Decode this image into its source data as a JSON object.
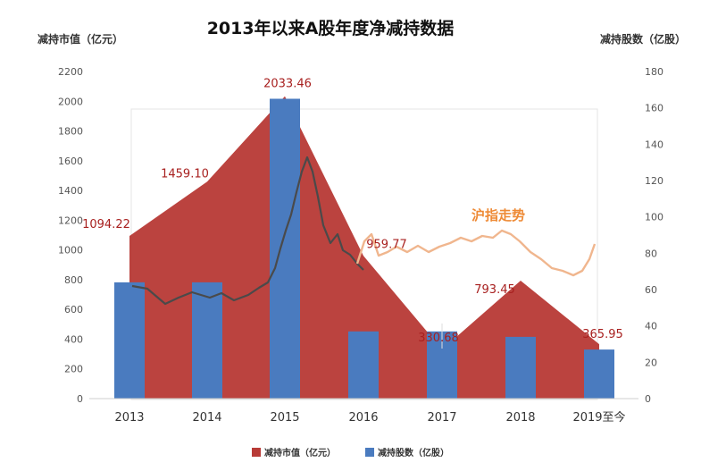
{
  "chart_data": {
    "type": "bar",
    "title": "2013年以来A股年度净减持数据",
    "categories": [
      "2013",
      "2014",
      "2015",
      "2016",
      "2017",
      "2018",
      "2019至今"
    ],
    "y_left_label": "减持市值（亿元）",
    "y_right_label": "减持股数（亿股）",
    "y_left_range": [
      0,
      2200
    ],
    "y_left_ticks": [
      0,
      200,
      400,
      600,
      800,
      1000,
      1200,
      1400,
      1600,
      1800,
      2000,
      2200
    ],
    "y_right_range": [
      0,
      180
    ],
    "y_right_ticks": [
      0,
      20,
      40,
      60,
      80,
      100,
      120,
      140,
      160,
      180
    ],
    "series": [
      {
        "name": "减持市值（亿元）",
        "kind": "area",
        "axis": "left",
        "color": "#b83b37",
        "values": [
          1094.22,
          1459.1,
          2033.46,
          959.77,
          330.68,
          793.45,
          365.95
        ],
        "labels": [
          "1094.22",
          "1459.10",
          "2033.46",
          "959.77",
          "330.68",
          "793.45",
          "365.95"
        ]
      },
      {
        "name": "减持股数（亿股）",
        "kind": "bar",
        "axis": "right",
        "color": "#4a7bbf",
        "values": [
          64,
          64,
          165,
          37,
          37,
          34,
          27
        ]
      }
    ],
    "index_annotation": {
      "label": "沪指走势",
      "color": "#ee8a35",
      "line_color_light": "#f0b68e",
      "line_color_dark": "#4a4a4a"
    },
    "legend_position": "bottom",
    "grid": false
  }
}
